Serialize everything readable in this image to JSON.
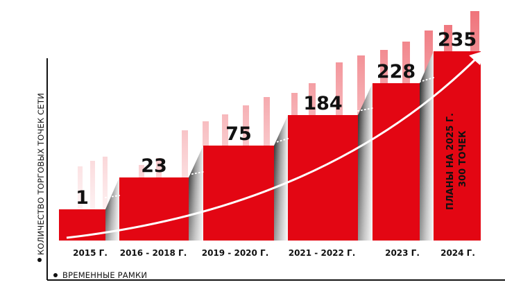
{
  "chart_data": {
    "type": "bar",
    "categories": [
      "2015 Г.",
      "2016 - 2018 Г.",
      "2019 - 2020 Г.",
      "2021 - 2022 Г.",
      "2023 Г.",
      "2024 Г."
    ],
    "values": [
      1,
      23,
      75,
      184,
      228,
      235
    ],
    "value_labels": [
      "1",
      "23",
      "75",
      "184",
      "228",
      "235"
    ],
    "ylabel": "КОЛИЧЕСТВО ТОРГОВЫХ ТОЧЕК СЕТИ",
    "xlabel": "ВРЕМЕННЫЕ РАМКИ",
    "annotation_line1": "ПЛАНЫ НА 2025 Г.",
    "annotation_line2": "300 ТОЧЕК",
    "grid": false,
    "trend_arrow": true,
    "colors": {
      "bar": "#e30613",
      "text": "#111111",
      "axis": "#111111",
      "arrow": "#ffffff"
    }
  }
}
